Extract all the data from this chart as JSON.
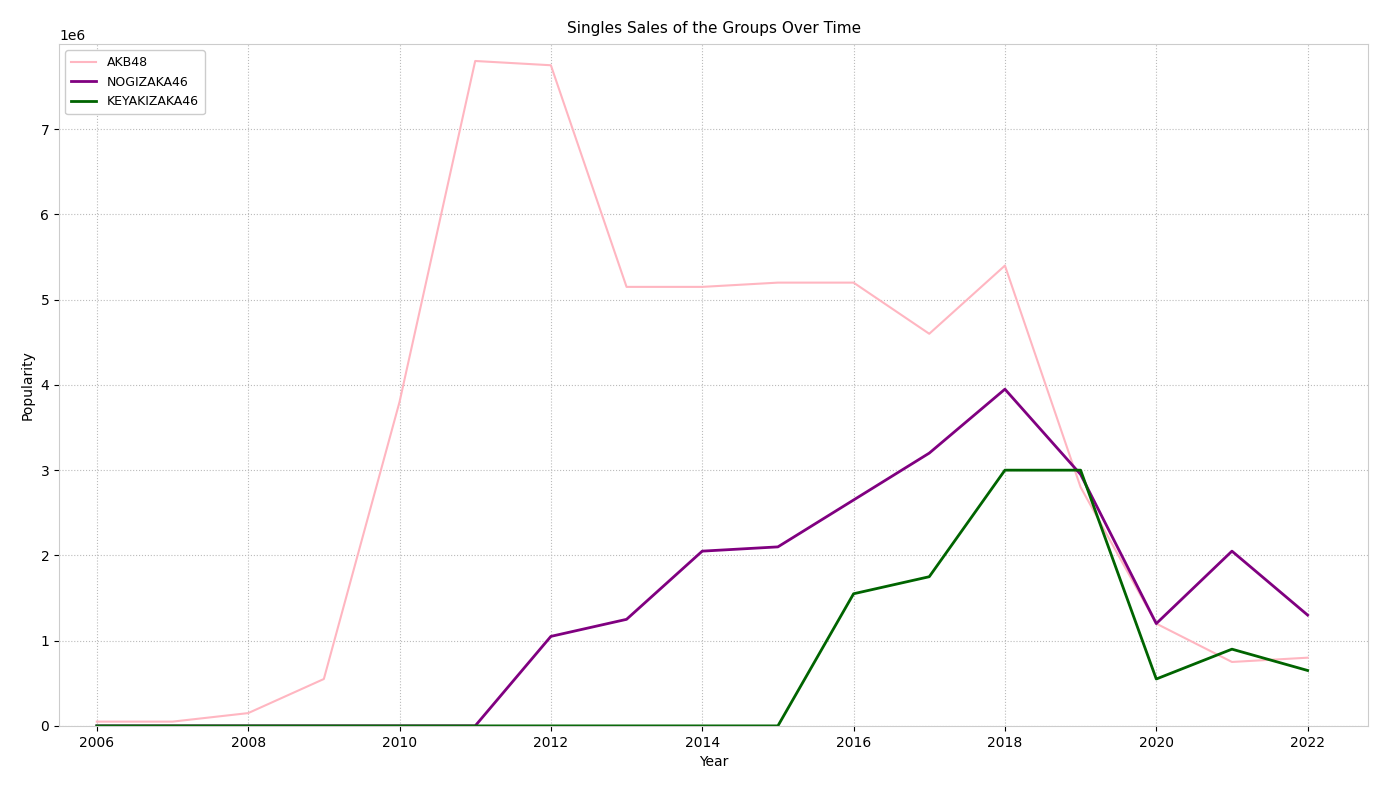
{
  "title": "Singles Sales of the Groups Over Time",
  "xlabel": "Year",
  "ylabel": "Popularity",
  "background_color": "#ffffff",
  "grid_color": "#bbbbbb",
  "series": [
    {
      "name": "AKB48",
      "color": "#ffb6c1",
      "linewidth": 1.5,
      "years": [
        2006,
        2007,
        2008,
        2009,
        2010,
        2011,
        2012,
        2013,
        2014,
        2015,
        2016,
        2017,
        2018,
        2019,
        2020,
        2021,
        2022
      ],
      "values": [
        50000,
        50000,
        150000,
        550000,
        3800000,
        7800000,
        7750000,
        5150000,
        5150000,
        5200000,
        5200000,
        4600000,
        5400000,
        2800000,
        1200000,
        750000,
        800000
      ]
    },
    {
      "name": "NOGIZAKA46",
      "color": "#800080",
      "linewidth": 2.0,
      "years": [
        2006,
        2007,
        2008,
        2009,
        2010,
        2011,
        2012,
        2013,
        2014,
        2015,
        2016,
        2017,
        2018,
        2019,
        2020,
        2021,
        2022
      ],
      "values": [
        0,
        0,
        0,
        0,
        0,
        0,
        1050000,
        1250000,
        2050000,
        2100000,
        2650000,
        3200000,
        3950000,
        2950000,
        1200000,
        2050000,
        1300000
      ]
    },
    {
      "name": "KEYAKIZAKA46",
      "color": "#006400",
      "linewidth": 2.0,
      "years": [
        2006,
        2007,
        2008,
        2009,
        2010,
        2011,
        2012,
        2013,
        2014,
        2015,
        2016,
        2017,
        2018,
        2019,
        2020,
        2021,
        2022
      ],
      "values": [
        0,
        0,
        0,
        0,
        0,
        0,
        0,
        0,
        0,
        0,
        1550000,
        1750000,
        3000000,
        3000000,
        550000,
        900000,
        650000
      ]
    }
  ],
  "ylim": [
    0,
    8000000
  ],
  "xlim": [
    2005.5,
    2022.8
  ],
  "yticks": [
    0,
    1000000,
    2000000,
    3000000,
    4000000,
    5000000,
    6000000,
    7000000
  ],
  "xticks": [
    2006,
    2008,
    2010,
    2012,
    2014,
    2016,
    2018,
    2020,
    2022
  ]
}
